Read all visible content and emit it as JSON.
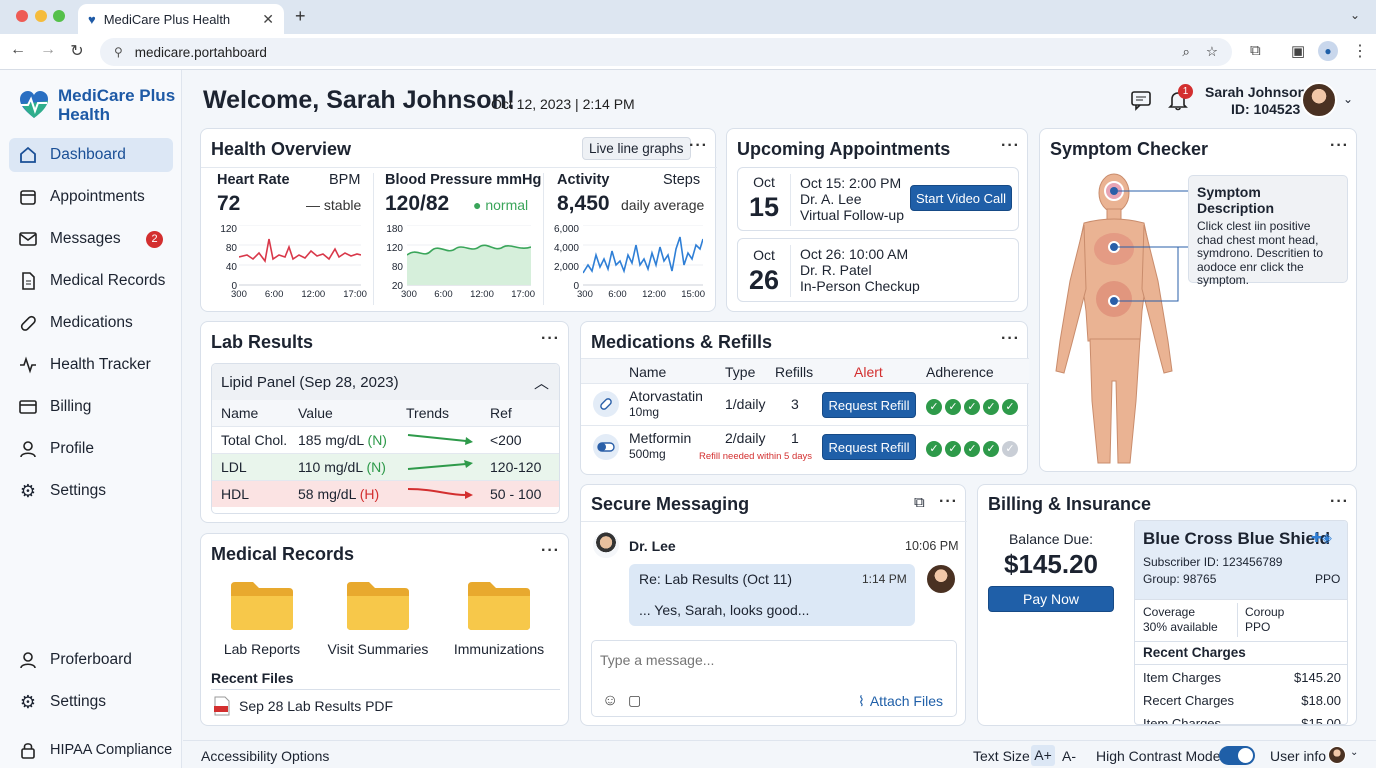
{
  "browser": {
    "tab_title": "MediCare Plus Health",
    "url": "medicare.portahboard"
  },
  "brand": {
    "line1": "MediCare Plus",
    "line2": "Health"
  },
  "sidebar": {
    "items": [
      {
        "label": "Dashboard"
      },
      {
        "label": "Appointments"
      },
      {
        "label": "Messages",
        "badge": "2"
      },
      {
        "label": "Medical Records"
      },
      {
        "label": "Medications"
      },
      {
        "label": "Health Tracker"
      },
      {
        "label": "Billing"
      },
      {
        "label": "Profile"
      },
      {
        "label": "Settings"
      }
    ],
    "bottom": [
      {
        "label": "Proferboard"
      },
      {
        "label": "Settings"
      },
      {
        "label": "HIPAA Compliance"
      }
    ]
  },
  "header": {
    "welcome": "Welcome, Sarah Johnson!",
    "datetime": "Oct 12, 2023 | 2:14 PM",
    "notif_count": "1",
    "user_name": "Sarah Johnson",
    "user_id": "ID: 104523"
  },
  "health": {
    "title": "Health Overview",
    "live_btn": "Live line graphs",
    "heart": {
      "label": "Heart Rate",
      "unit": "BPM",
      "value": "72",
      "status": "— stable",
      "yticks": [
        "120",
        "80",
        "40",
        "0"
      ],
      "xticks": [
        "300",
        "6:00",
        "12:00",
        "17:00"
      ]
    },
    "bp": {
      "label": "Blood Pressure mmHg",
      "value": "120/82",
      "status": "● normal",
      "yticks": [
        "180",
        "120",
        "80",
        "20"
      ],
      "xticks": [
        "300",
        "6:00",
        "12:00",
        "17:00"
      ]
    },
    "activity": {
      "label": "Activity",
      "unit": "Steps",
      "value": "8,450",
      "status": "daily average",
      "yticks": [
        "6,000",
        "4,000",
        "2,000",
        "0"
      ],
      "xticks": [
        "300",
        "6:00",
        "12:00",
        "15:00"
      ]
    }
  },
  "appointments": {
    "title": "Upcoming Appointments",
    "items": [
      {
        "month": "Oct",
        "day": "15",
        "time": "Oct 15: 2:00 PM",
        "doctor": "Dr. A. Lee",
        "type": "Virtual Follow-up",
        "action": "Start Video Call"
      },
      {
        "month": "Oct",
        "day": "26",
        "time": "Oct 26: 10:00 AM",
        "doctor": "Dr. R. Patel",
        "type": "In-Person Checkup"
      }
    ]
  },
  "symptom": {
    "title": "Symptom Checker",
    "desc_title": "Symptom Description",
    "desc_text": "Click clest iin positive chad chest mont head, symdrono. Descritien to aodoce enr click the symptom."
  },
  "lab": {
    "title": "Lab Results",
    "panel": "Lipid Panel (Sep 28, 2023)",
    "headers": [
      "Name",
      "Value",
      "Trends",
      "Ref"
    ],
    "rows": [
      {
        "name": "Total Chol.",
        "value": "185 mg/dL",
        "flag": "(N)",
        "ref": "<200"
      },
      {
        "name": "LDL",
        "value": "110 mg/dL",
        "flag": "(N)",
        "ref": "120-120"
      },
      {
        "name": "HDL",
        "value": "58 mg/dL",
        "flag": "(H)",
        "ref": "50 - 100"
      }
    ]
  },
  "meds": {
    "title": "Medications & Refills",
    "headers": [
      "Name",
      "Type",
      "Refills",
      "Alert",
      "Adherence"
    ],
    "rows": [
      {
        "name": "Atorvastatin",
        "dose": "10mg",
        "type": "1/daily",
        "refills": "3",
        "action": "Request Refill",
        "note": "",
        "adherence": 5
      },
      {
        "name": "Metformin",
        "dose": "500mg",
        "type": "2/daily",
        "refills": "1",
        "action": "Request Refill",
        "note": "Refill needed within 5 days",
        "adherence": 4
      }
    ]
  },
  "records": {
    "title": "Medical Records",
    "folders": [
      "Lab Reports",
      "Visit Summaries",
      "Immunizations"
    ],
    "recent_label": "Recent Files",
    "recent_file": "Sep 28 Lab Results PDF"
  },
  "messaging": {
    "title": "Secure Messaging",
    "sender": "Dr. Lee",
    "time": "10:06 PM",
    "reply_subject": "Re: Lab Results (Oct 11)",
    "reply_time": "1:14 PM",
    "reply_body": "... Yes, Sarah, looks good...",
    "placeholder": "Type a message...",
    "attach": "Attach Files"
  },
  "billing": {
    "title": "Billing & Insurance",
    "balance_label": "Balance Due:",
    "balance": "$145.20",
    "pay": "Pay Now",
    "insurer": "Blue Cross Blue Shield",
    "subscriber": "Subscriber ID: 123456789",
    "group": "Group: 98765",
    "plan": "PPO",
    "coverage_label": "Coverage",
    "coverage_val": "30% available",
    "coroup_label": "Coroup",
    "coroup_val": "PPO",
    "recent_label": "Recent Charges",
    "charges": [
      {
        "label": "Item Charges",
        "amount": "$145.20"
      },
      {
        "label": "Recert Charges",
        "amount": "$18.00"
      },
      {
        "label": "Item Charges",
        "amount": "$15.00"
      }
    ]
  },
  "footer": {
    "accessibility": "Accessibility Options",
    "text_size": "Text Size",
    "a_plus": "A+",
    "a_minus": "A-",
    "contrast": "High Contrast Mode",
    "user_info": "User info"
  },
  "colors": {
    "primary": "#1f5fa8",
    "danger": "#d32f2f",
    "success": "#2e9a4a",
    "heart_line": "#d9384a",
    "bp_line": "#3aa55a",
    "activity_line": "#2f7fd6"
  }
}
